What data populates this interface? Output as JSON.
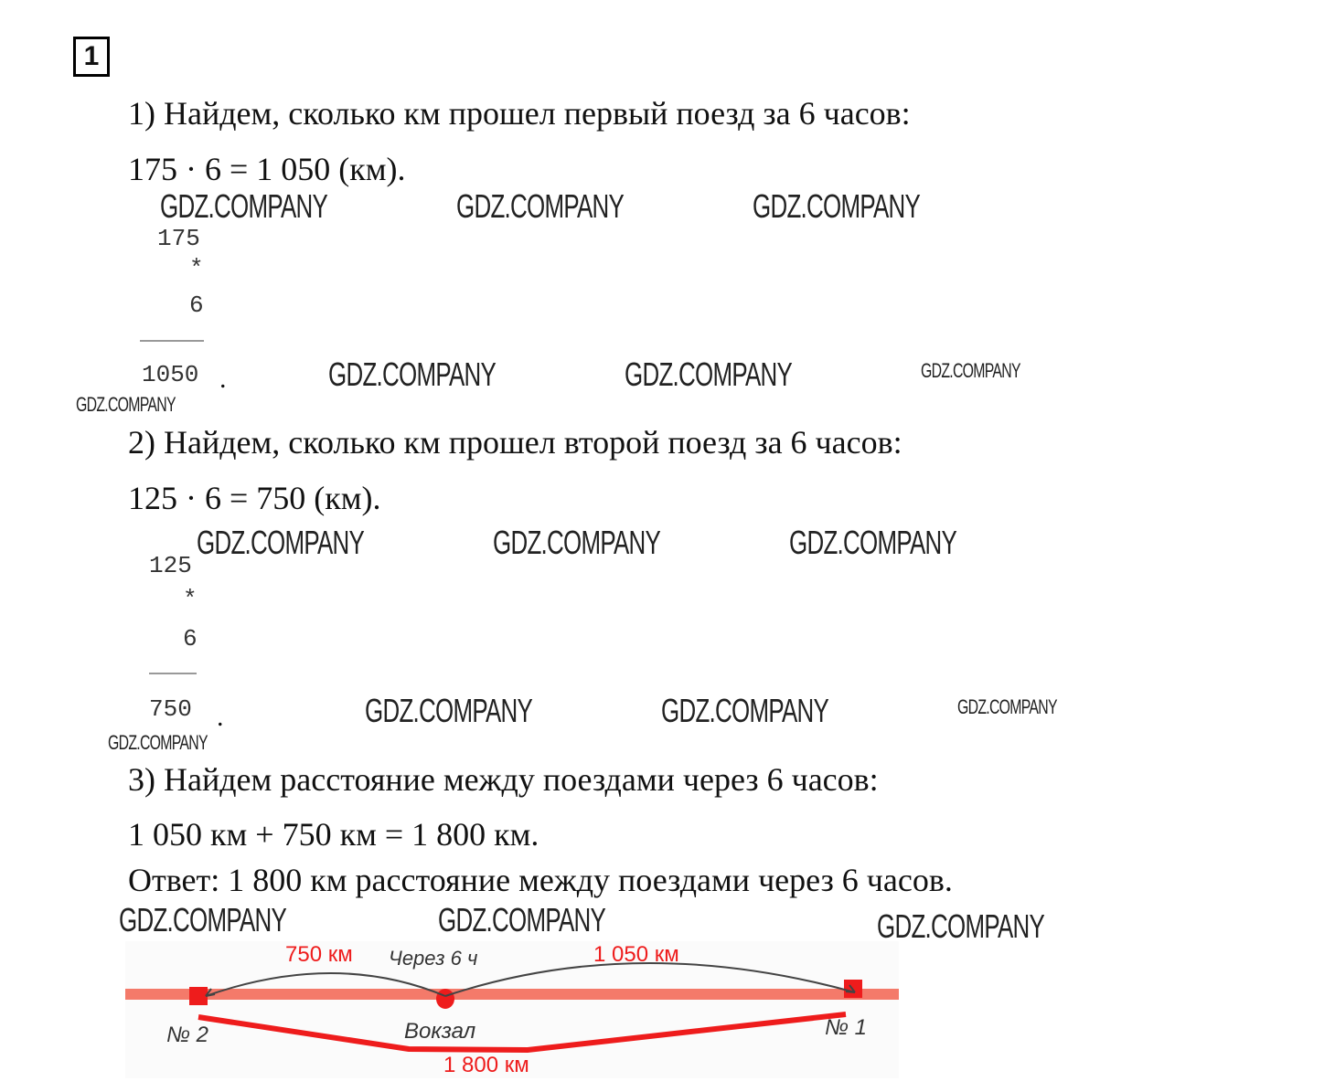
{
  "task_number": "1",
  "watermark": "GDZ.COMPANY",
  "step1": {
    "title": "1) Найдем, сколько км прошел первый поезд за 6 часов:",
    "expr": "175 · 6 = 1 050 (км).",
    "col_a": "175",
    "col_op": "*",
    "col_b": "6",
    "col_result": "1050",
    "dot": "."
  },
  "step2": {
    "title": "2) Найдем, сколько км прошел второй поезд за 6 часов:",
    "expr": "125 · 6 = 750 (км).",
    "col_a": "125",
    "col_op": "*",
    "col_b": "6",
    "col_result": "750",
    "dot": "."
  },
  "step3": {
    "title": "3) Найдем расстояние между поездами через 6 часов:",
    "expr": "1 050 км + 750 км = 1 800 км."
  },
  "answer": "Ответ: 1 800 км расстояние между поездами через 6 часов.",
  "diagram": {
    "left_distance": "750 км",
    "time": "Через 6 ч",
    "right_distance": "1 050 км",
    "train2": "№ 2",
    "station": "Вокзал",
    "train1": "№ 1",
    "total": "1 800 км",
    "colors": {
      "track": "#f47a6a",
      "accent": "#ee1c1c"
    }
  }
}
